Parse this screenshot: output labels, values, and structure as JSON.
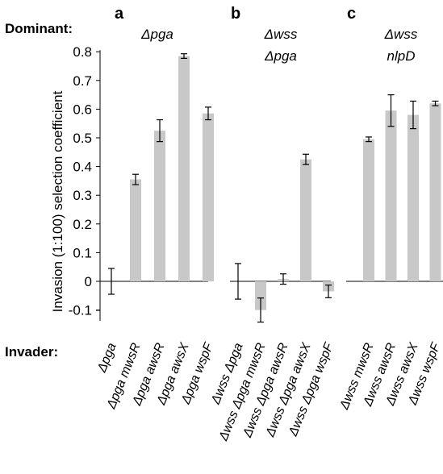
{
  "chart_data": {
    "type": "bar",
    "ylabel": "Invasion (1:100) selection coefficient",
    "ylim": [
      -0.2,
      0.8
    ],
    "yticks": [
      "0.8",
      "0.7",
      "0.6",
      "0.5",
      "0.4",
      "0.3",
      "0.2",
      "0.1",
      "0",
      "-0.1"
    ],
    "ytick_values": [
      0.8,
      0.7,
      0.6,
      0.5,
      0.4,
      0.3,
      0.2,
      0.1,
      0,
      -0.1
    ],
    "row_labels": {
      "dominant": "Dominant:",
      "invader": "Invader:"
    },
    "bar_color": "#c8c8c8",
    "panels": [
      {
        "letter": "a",
        "dominant": [
          "Δpga"
        ],
        "categories": [
          "Δpga",
          "Δpga mwsR",
          "Δpga awsR",
          "Δpga awsX",
          "Δpga wspF"
        ],
        "values": [
          0.0,
          0.355,
          0.525,
          0.785,
          0.585
        ],
        "errors": [
          0.045,
          0.018,
          0.038,
          0.008,
          0.022
        ]
      },
      {
        "letter": "b",
        "dominant": [
          "Δwss",
          "Δpga"
        ],
        "categories": [
          "Δwss Δpga",
          "Δwss Δpga mwsR",
          "Δwss Δpga awsR",
          "Δwss Δpga awsX",
          "Δwss Δpga wspF"
        ],
        "values": [
          0.0,
          -0.1,
          0.008,
          0.425,
          -0.035
        ],
        "errors": [
          0.062,
          0.042,
          0.018,
          0.018,
          0.022
        ]
      },
      {
        "letter": "c",
        "dominant": [
          "Δwss",
          "nlpD"
        ],
        "categories": [
          "Δwss mwsR",
          "Δwss awsR",
          "Δwss awsX",
          "Δwss wspF"
        ],
        "values": [
          0.495,
          0.595,
          0.58,
          0.62
        ],
        "errors": [
          0.008,
          0.055,
          0.048,
          0.008
        ]
      }
    ]
  }
}
